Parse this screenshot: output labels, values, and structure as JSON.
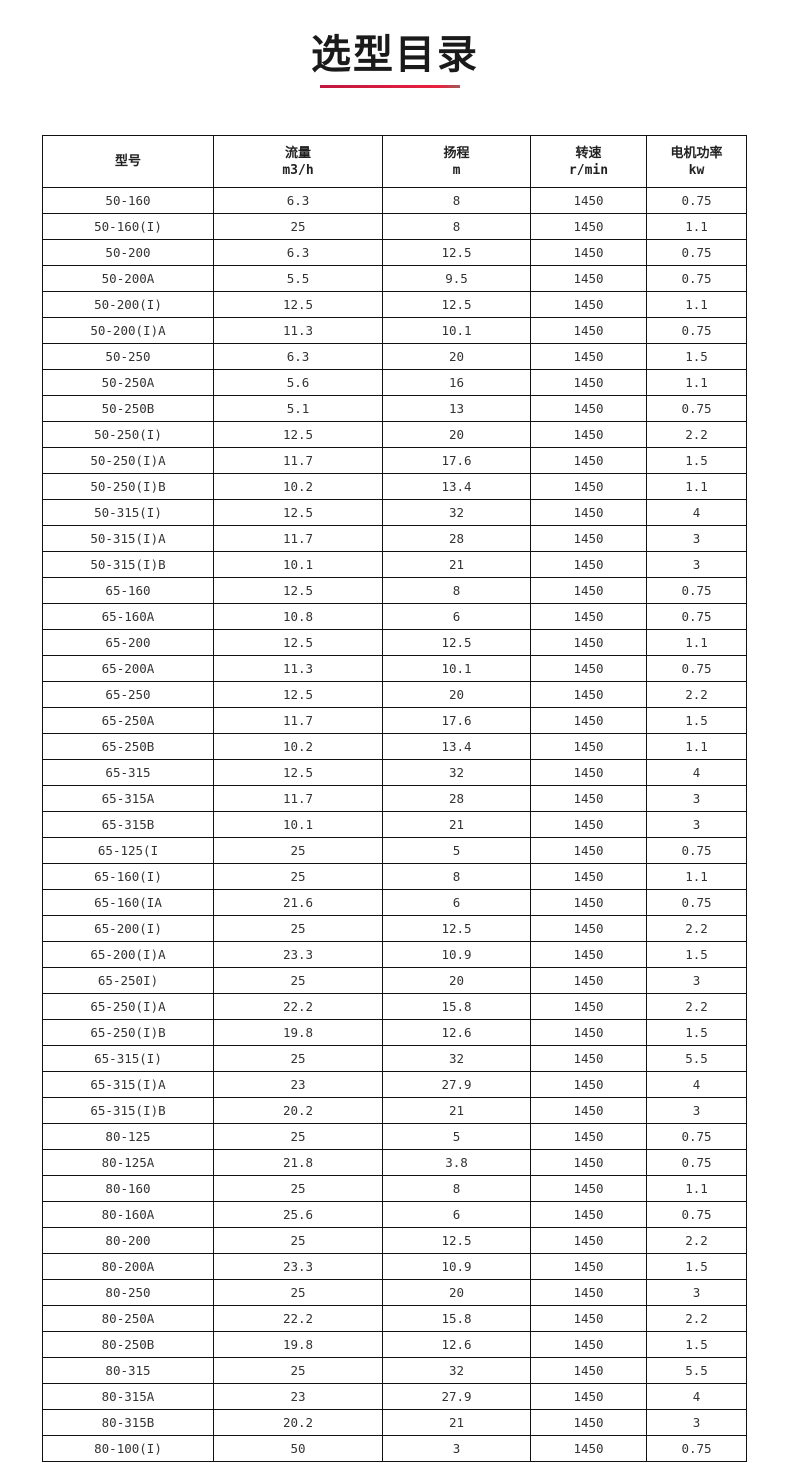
{
  "title": "选型目录",
  "colors": {
    "accent": "#e8223f"
  },
  "table": {
    "headers": [
      {
        "label": "型号",
        "unit": ""
      },
      {
        "label": "流量",
        "unit": "m3/h"
      },
      {
        "label": "扬程",
        "unit": "m"
      },
      {
        "label": "转速",
        "unit": "r/min"
      },
      {
        "label": "电机功率",
        "unit": "kw"
      }
    ],
    "rows": [
      [
        "50-160",
        "6.3",
        "8",
        "1450",
        "0.75"
      ],
      [
        "50-160(I)",
        "25",
        "8",
        "1450",
        "1.1"
      ],
      [
        "50-200",
        "6.3",
        "12.5",
        "1450",
        "0.75"
      ],
      [
        "50-200A",
        "5.5",
        "9.5",
        "1450",
        "0.75"
      ],
      [
        "50-200(I)",
        "12.5",
        "12.5",
        "1450",
        "1.1"
      ],
      [
        "50-200(I)A",
        "11.3",
        "10.1",
        "1450",
        "0.75"
      ],
      [
        "50-250",
        "6.3",
        "20",
        "1450",
        "1.5"
      ],
      [
        "50-250A",
        "5.6",
        "16",
        "1450",
        "1.1"
      ],
      [
        "50-250B",
        "5.1",
        "13",
        "1450",
        "0.75"
      ],
      [
        "50-250(I)",
        "12.5",
        "20",
        "1450",
        "2.2"
      ],
      [
        "50-250(I)A",
        "11.7",
        "17.6",
        "1450",
        "1.5"
      ],
      [
        "50-250(I)B",
        "10.2",
        "13.4",
        "1450",
        "1.1"
      ],
      [
        "50-315(I)",
        "12.5",
        "32",
        "1450",
        "4"
      ],
      [
        "50-315(I)A",
        "11.7",
        "28",
        "1450",
        "3"
      ],
      [
        "50-315(I)B",
        "10.1",
        "21",
        "1450",
        "3"
      ],
      [
        "65-160",
        "12.5",
        "8",
        "1450",
        "0.75"
      ],
      [
        "65-160A",
        "10.8",
        "6",
        "1450",
        "0.75"
      ],
      [
        "65-200",
        "12.5",
        "12.5",
        "1450",
        "1.1"
      ],
      [
        "65-200A",
        "11.3",
        "10.1",
        "1450",
        "0.75"
      ],
      [
        "65-250",
        "12.5",
        "20",
        "1450",
        "2.2"
      ],
      [
        "65-250A",
        "11.7",
        "17.6",
        "1450",
        "1.5"
      ],
      [
        "65-250B",
        "10.2",
        "13.4",
        "1450",
        "1.1"
      ],
      [
        "65-315",
        "12.5",
        "32",
        "1450",
        "4"
      ],
      [
        "65-315A",
        "11.7",
        "28",
        "1450",
        "3"
      ],
      [
        "65-315B",
        "10.1",
        "21",
        "1450",
        "3"
      ],
      [
        "65-125(I",
        "25",
        "5",
        "1450",
        "0.75"
      ],
      [
        "65-160(I)",
        "25",
        "8",
        "1450",
        "1.1"
      ],
      [
        "65-160(IA",
        "21.6",
        "6",
        "1450",
        "0.75"
      ],
      [
        "65-200(I)",
        "25",
        "12.5",
        "1450",
        "2.2"
      ],
      [
        "65-200(I)A",
        "23.3",
        "10.9",
        "1450",
        "1.5"
      ],
      [
        "65-250I)",
        "25",
        "20",
        "1450",
        "3"
      ],
      [
        "65-250(I)A",
        "22.2",
        "15.8",
        "1450",
        "2.2"
      ],
      [
        "65-250(I)B",
        "19.8",
        "12.6",
        "1450",
        "1.5"
      ],
      [
        "65-315(I)",
        "25",
        "32",
        "1450",
        "5.5"
      ],
      [
        "65-315(I)A",
        "23",
        "27.9",
        "1450",
        "4"
      ],
      [
        "65-315(I)B",
        "20.2",
        "21",
        "1450",
        "3"
      ],
      [
        "80-125",
        "25",
        "5",
        "1450",
        "0.75"
      ],
      [
        "80-125A",
        "21.8",
        "3.8",
        "1450",
        "0.75"
      ],
      [
        "80-160",
        "25",
        "8",
        "1450",
        "1.1"
      ],
      [
        "80-160A",
        "25.6",
        "6",
        "1450",
        "0.75"
      ],
      [
        "80-200",
        "25",
        "12.5",
        "1450",
        "2.2"
      ],
      [
        "80-200A",
        "23.3",
        "10.9",
        "1450",
        "1.5"
      ],
      [
        "80-250",
        "25",
        "20",
        "1450",
        "3"
      ],
      [
        "80-250A",
        "22.2",
        "15.8",
        "1450",
        "2.2"
      ],
      [
        "80-250B",
        "19.8",
        "12.6",
        "1450",
        "1.5"
      ],
      [
        "80-315",
        "25",
        "32",
        "1450",
        "5.5"
      ],
      [
        "80-315A",
        "23",
        "27.9",
        "1450",
        "4"
      ],
      [
        "80-315B",
        "20.2",
        "21",
        "1450",
        "3"
      ],
      [
        "80-100(I)",
        "50",
        "3",
        "1450",
        "0.75"
      ]
    ]
  }
}
